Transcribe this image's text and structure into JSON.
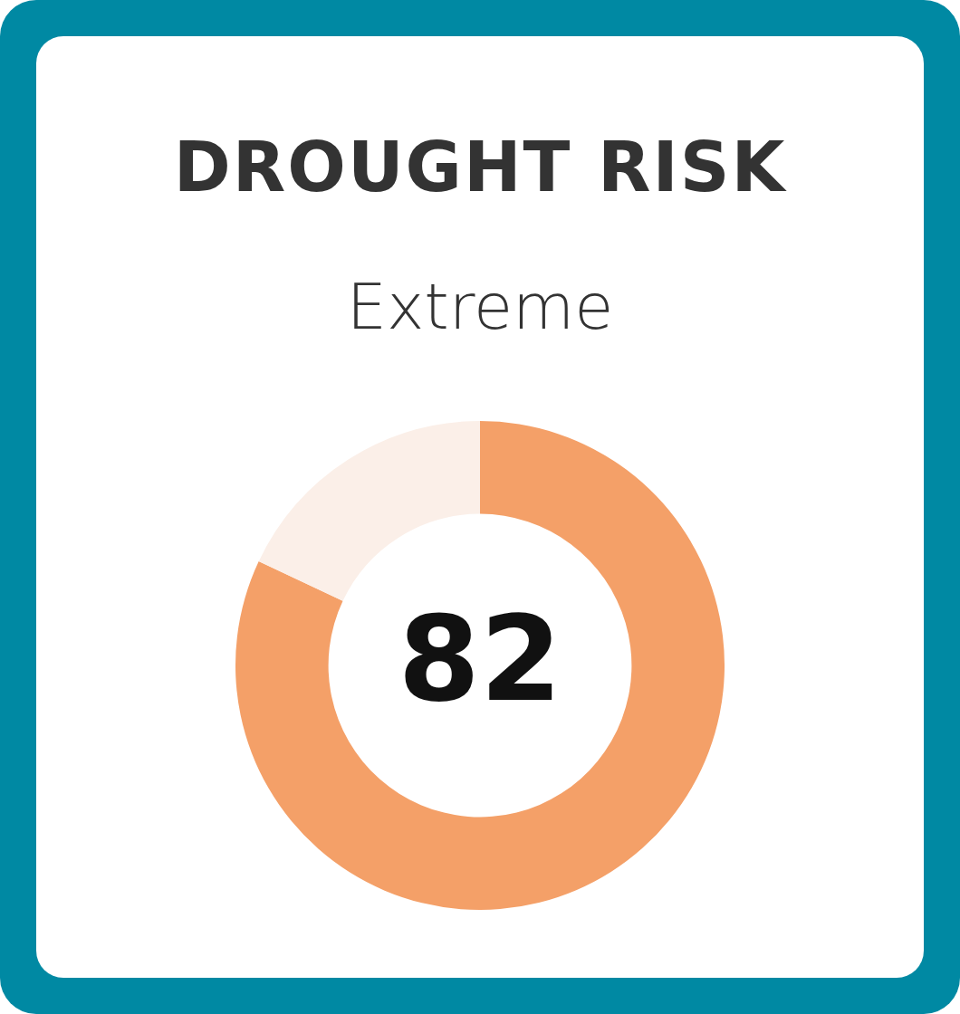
{
  "chart_data": {
    "type": "donut",
    "title": "DROUGHT RISK",
    "subtitle": "Extreme",
    "categories": [
      null,
      null
    ],
    "values": [
      82,
      18
    ],
    "colors": [
      "#f4a068",
      "#fbefe8"
    ],
    "value_labels": [
      "82",
      null
    ],
    "legend": false
  }
}
